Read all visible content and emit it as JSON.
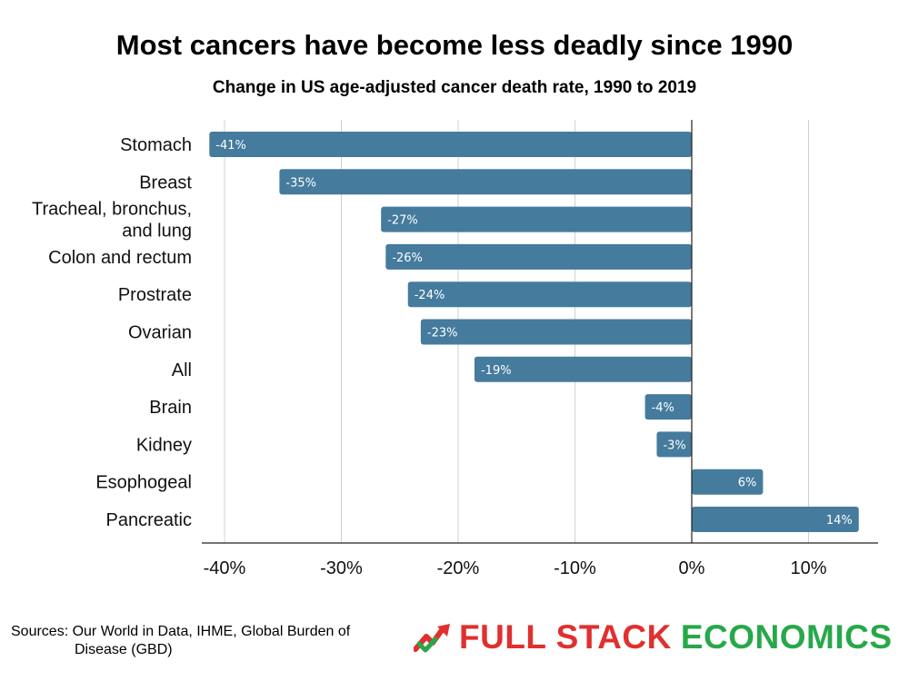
{
  "chart_data": {
    "type": "bar",
    "orientation": "horizontal",
    "title": "Most cancers have become less deadly since 1990",
    "subtitle": "Change in US age-adjusted cancer death rate, 1990 to 2019",
    "categories": [
      [
        "Stomach"
      ],
      [
        "Breast"
      ],
      [
        "Tracheal, bronchus,",
        "and lung"
      ],
      [
        "Colon and rectum"
      ],
      [
        "Prostrate"
      ],
      [
        "Ovarian"
      ],
      [
        "All"
      ],
      [
        "Brain"
      ],
      [
        "Kidney"
      ],
      [
        "Esophogeal"
      ],
      [
        "Pancreatic"
      ]
    ],
    "values": [
      -41.3,
      -35.3,
      -26.6,
      -26.2,
      -24.3,
      -23.2,
      -18.6,
      -4,
      -3,
      6.1,
      14.3
    ],
    "value_labels": [
      "-41%",
      "-35%",
      "-27%",
      "-26%",
      "-24%",
      "-23%",
      "-19%",
      "-4%",
      "-3%",
      "6%",
      "14%"
    ],
    "xlim": [
      -42,
      16
    ],
    "xticks": [
      -40,
      -30,
      -20,
      -10,
      0,
      10
    ],
    "xtick_labels": [
      "-40%",
      "-30%",
      "-20%",
      "-10%",
      "0%",
      "10%"
    ],
    "grid": true,
    "bar_color": "#457b9d",
    "grid_color": "#d0d0d0",
    "axis_color": "#222222"
  },
  "footer": {
    "sources_line1": "Sources: Our World in Data, IHME, Global Burden of",
    "sources_line2": "Disease (GBD)",
    "logo_part1": "FULL STACK",
    "logo_part2": "ECONOMICS",
    "logo_icon": "trending-up-check-icon",
    "logo_color_red": "#e0302f",
    "logo_color_green": "#27a84a"
  }
}
